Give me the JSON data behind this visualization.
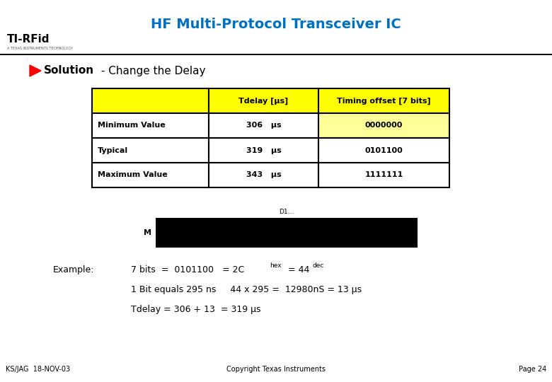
{
  "title": "HF Multi-Protocol Transceiver IC",
  "title_color": "#0070C0",
  "bg_color": "#FFFFFF",
  "solution_text": "Solution",
  "solution_arrow_color": "#FF0000",
  "subtitle": " - Change the Delay",
  "table_headers": [
    "",
    "Tdelay [μs]",
    "Timing offset [7 bits]"
  ],
  "table_rows": [
    [
      "Minimum Value",
      "306   μs",
      "0000000"
    ],
    [
      "Typical",
      "319   μs",
      "0101100"
    ],
    [
      "Maximum Value",
      "343   μs",
      "1111111"
    ]
  ],
  "header_bg": "#FFFF00",
  "row_bg": "#FFFFFF",
  "row_bg_highlight": "#FFFF99",
  "border_color": "#000000",
  "black_box_color": "#000000",
  "example_label": "Example:",
  "example_line1a": "7 bits  =  0101100   = 2C",
  "example_line1_sub1": "hex",
  "example_line1b": " = 44",
  "example_line1_sub2": "dec",
  "example_line2": "1 Bit equals 295 ns     44 x 295 =  12980nS = 13 μs",
  "example_line3": "Tdelay = 306 + 13  = 319 μs",
  "footer_left": "KS/JAG  18-NOV-03",
  "footer_center": "Copyright Texas Instruments",
  "footer_right": "Page 24"
}
